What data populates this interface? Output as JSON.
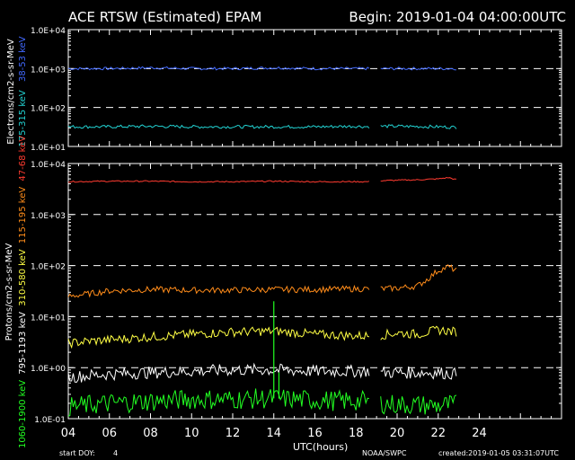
{
  "header": {
    "title": "ACE RTSW (Estimated) EPAM",
    "begin": "Begin: 2019-01-04 04:00:00UTC"
  },
  "footer": {
    "start_doy_label": "start DOY:",
    "start_doy_value": "4",
    "xlabel": "UTC(hours)",
    "credit": "NOAA/SWPC",
    "created": "created:2019-01-05 03:31:07UTC"
  },
  "colors": {
    "background": "#000000",
    "axes": "#ffffff",
    "grid": "#ffffff",
    "blue": "#4169ff",
    "cyan": "#22d3d3",
    "red": "#ff3b30",
    "orange": "#ff8c1a",
    "yellow": "#ffff44",
    "white": "#ffffff",
    "green": "#22ff22"
  },
  "chart_data": [
    {
      "type": "line",
      "title": "ACE RTSW (Estimated) EPAM",
      "xlabel": "UTC(hours)",
      "xlim": [
        4,
        28
      ],
      "x_ticks": [
        "04",
        "06",
        "08",
        "10",
        "12",
        "14",
        "16",
        "18",
        "20",
        "22",
        "24"
      ],
      "ylabel": "Electrons/cm2-s-sr-MeV",
      "yscale": "log",
      "ylim": [
        10,
        10000
      ],
      "y_ticks": [
        "1.0E+01",
        "1.0E+02",
        "1.0E+03",
        "1.0E+04"
      ],
      "grid": "dashed horizontal at 1.0E+02 and 1.0E+03",
      "data_gap": [
        18.7,
        19.2
      ],
      "data_end": 22.9,
      "series": [
        {
          "name": "38-53 keV",
          "color": "blue",
          "x": [
            4,
            6,
            8,
            10,
            12,
            14,
            16,
            18,
            18.7,
            19.2,
            20,
            22,
            22.9
          ],
          "y": [
            1000,
            1000,
            1050,
            1000,
            1000,
            1050,
            1000,
            1000,
            1000,
            1000,
            1000,
            1000,
            1000
          ]
        },
        {
          "name": "175-315 keV",
          "color": "cyan",
          "x": [
            4,
            6,
            8,
            10,
            12,
            14,
            16,
            18,
            18.7,
            19.2,
            20,
            22,
            22.9
          ],
          "y": [
            32,
            32,
            33,
            32,
            32,
            32,
            32,
            33,
            32,
            33,
            33,
            32,
            31
          ]
        }
      ]
    },
    {
      "type": "line",
      "xlabel": "UTC(hours)",
      "xlim": [
        4,
        28
      ],
      "x_ticks": [
        "04",
        "06",
        "08",
        "10",
        "12",
        "14",
        "16",
        "18",
        "20",
        "22",
        "24"
      ],
      "ylabel": "Protons/cm2-s-sr-MeV",
      "yscale": "log",
      "ylim": [
        0.1,
        10000
      ],
      "y_ticks": [
        "1.0E-01",
        "1.0E+00",
        "1.0E+01",
        "1.0E+02",
        "1.0E+03",
        "1.0E+04"
      ],
      "grid": "dashed horizontal at each decade",
      "data_gap": [
        18.7,
        19.2
      ],
      "data_end": 22.9,
      "series": [
        {
          "name": "47-68 keV",
          "color": "red",
          "x": [
            4,
            6,
            8,
            10,
            12,
            14,
            16,
            18,
            18.7,
            19.2,
            20,
            21,
            22,
            22.5,
            22.9
          ],
          "y": [
            4400,
            4500,
            4500,
            4400,
            4400,
            4500,
            4400,
            4400,
            4400,
            4600,
            4700,
            4800,
            5000,
            5300,
            4800
          ]
        },
        {
          "name": "115-195 keV",
          "color": "orange",
          "x": [
            4,
            5,
            6,
            8,
            10,
            12,
            14,
            16,
            18,
            18.7,
            19.2,
            20,
            21,
            21.5,
            22,
            22.5,
            22.9
          ],
          "y": [
            25,
            28,
            32,
            34,
            33,
            33,
            34,
            34,
            35,
            35,
            35,
            36,
            40,
            55,
            80,
            95,
            80
          ]
        },
        {
          "name": "310-580 keV",
          "color": "yellow",
          "x": [
            4,
            5,
            6,
            8,
            10,
            12,
            14,
            16,
            18,
            18.7,
            19.2,
            20,
            21,
            22,
            22.9
          ],
          "y": [
            3,
            3.3,
            3.5,
            4,
            4.5,
            5,
            5.2,
            4.5,
            4.2,
            4.2,
            4.3,
            4.8,
            4.5,
            5.5,
            5
          ]
        },
        {
          "name": "795-1193 keV",
          "color": "white",
          "x": [
            4,
            6,
            8,
            10,
            12,
            14,
            16,
            18,
            18.7,
            19.2,
            20,
            22,
            22.9
          ],
          "y": [
            0.65,
            0.75,
            0.8,
            0.85,
            0.9,
            0.9,
            0.85,
            0.85,
            0.85,
            0.8,
            0.8,
            0.8,
            0.75
          ]
        },
        {
          "name": "1060-1900 keV",
          "color": "green",
          "x": [
            4,
            6,
            8,
            10,
            12,
            14,
            16,
            18,
            18.7,
            19.2,
            20,
            22,
            22.9
          ],
          "y": [
            0.17,
            0.2,
            0.22,
            0.24,
            0.24,
            0.25,
            0.23,
            0.22,
            0.22,
            0.2,
            0.19,
            0.18,
            0.19
          ],
          "spikes": [
            {
              "x": 14.0,
              "y": 20
            },
            {
              "x": 14.25,
              "y": 0.8
            }
          ]
        }
      ]
    }
  ]
}
